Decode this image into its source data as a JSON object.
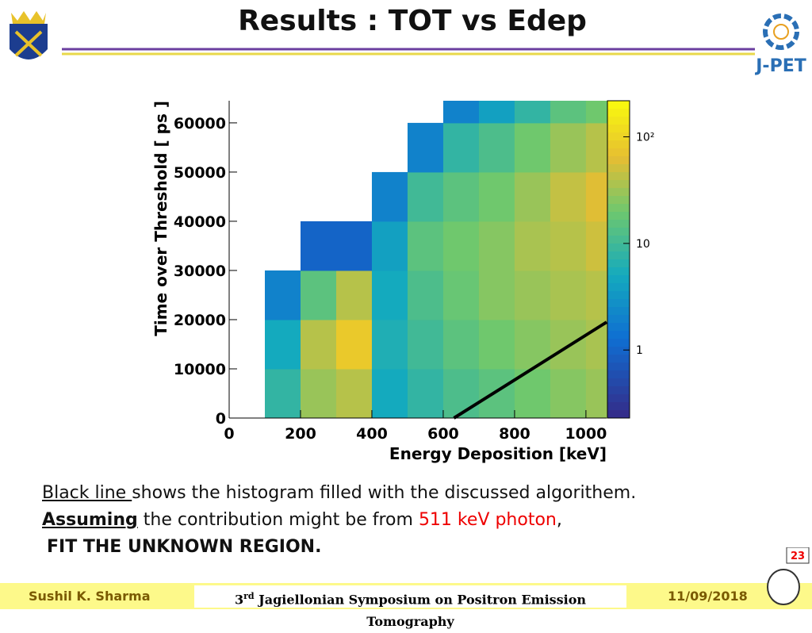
{
  "title": "Results :  TOT vs Edep",
  "logo": "J-PET",
  "badge": "23",
  "body": {
    "line1_a": "Black line ",
    "line1_b": "shows the histogram filled with the discussed algorithem.",
    "line2_a": "Assuming",
    "line2_b": " the contribution might be from ",
    "line2_c": "511 keV photon",
    "line2_d": ",",
    "line3": "FIT THE UNKNOWN REGION."
  },
  "footer": {
    "author": "Sushil K. Sharma",
    "event_num": "3",
    "event_sup": "rd",
    "event_rest": " Jagiellonian Symposium on Positron Emission Tomography",
    "date": "11/09/2018"
  },
  "chart_data": {
    "type": "heatmap",
    "xlabel": "Energy Deposition [keV]",
    "ylabel": "Time over Threshold [ ps ]",
    "xlim": [
      0,
      1058
    ],
    "ylim": [
      0,
      64500
    ],
    "xticks": [
      0,
      200,
      400,
      600,
      800,
      1000
    ],
    "yticks": [
      0,
      10000,
      20000,
      30000,
      40000,
      50000,
      60000
    ],
    "x_bins": [
      0,
      100,
      200,
      300,
      400,
      500,
      600,
      700,
      800,
      900,
      1000,
      1058
    ],
    "y_bins": [
      0,
      10000,
      20000,
      30000,
      40000,
      50000,
      60000,
      64500
    ],
    "values": [
      [
        0,
        8,
        30,
        40,
        5,
        8,
        12,
        15,
        20,
        25,
        30
      ],
      [
        0,
        5,
        40,
        80,
        6,
        10,
        15,
        20,
        25,
        30,
        35
      ],
      [
        0,
        2,
        15,
        40,
        5,
        12,
        18,
        25,
        30,
        35,
        40
      ],
      [
        0,
        0,
        1,
        1,
        4,
        15,
        20,
        25,
        35,
        40,
        50
      ],
      [
        0,
        0,
        0,
        0,
        2,
        10,
        15,
        20,
        30,
        45,
        60
      ],
      [
        0,
        0,
        0,
        0,
        0,
        2,
        8,
        12,
        20,
        30,
        40
      ],
      [
        0,
        0,
        0,
        0,
        0,
        0,
        2,
        4,
        8,
        15,
        20
      ]
    ],
    "zscale": "log",
    "zlim": [
      0.23,
      218
    ],
    "zticks": [
      1,
      10,
      {
        "value": 100,
        "label": "10²"
      }
    ],
    "overlay": {
      "type": "line",
      "color": "#000000",
      "x": [
        630,
        1058
      ],
      "y": [
        0,
        19500
      ]
    }
  }
}
